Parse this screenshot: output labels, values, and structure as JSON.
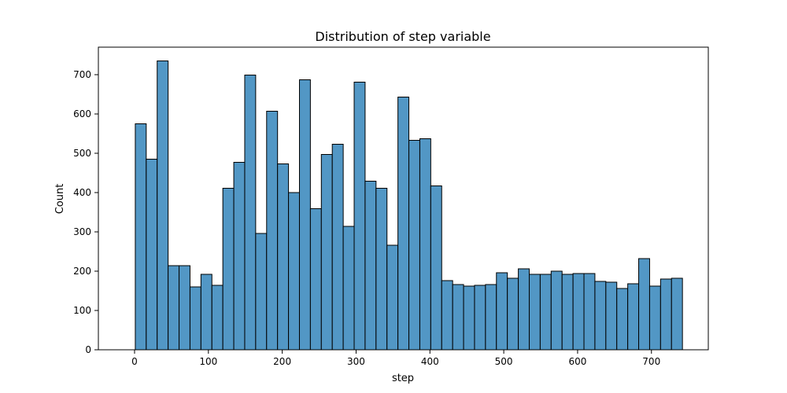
{
  "chart_data": {
    "type": "bar",
    "title": "Distribution of step variable",
    "xlabel": "step",
    "ylabel": "Count",
    "xlim": [
      -49,
      777
    ],
    "ylim": [
      0,
      770
    ],
    "xticks": [
      0,
      100,
      200,
      300,
      400,
      500,
      600,
      700
    ],
    "yticks": [
      0,
      100,
      200,
      300,
      400,
      500,
      600,
      700
    ],
    "grid": false,
    "bin_edges": [
      1,
      15.82,
      30.64,
      45.46,
      60.28,
      75.1,
      89.92,
      104.74,
      119.56,
      134.38,
      149.2,
      164.02,
      178.84,
      193.66,
      208.48,
      223.3,
      238.12,
      252.94,
      267.76,
      282.58,
      297.4,
      312.22,
      327.04,
      341.86,
      356.68,
      371.5,
      386.32,
      401.14,
      415.96,
      430.78,
      445.6,
      460.42,
      475.24,
      490.06,
      504.88,
      519.7,
      534.52,
      549.34,
      564.16,
      578.98,
      593.8,
      608.62,
      623.44,
      638.26,
      653.08,
      667.9,
      682.72,
      697.54,
      712.36,
      727.18,
      742
    ],
    "values": [
      575,
      485,
      735,
      214,
      214,
      160,
      192,
      164,
      411,
      477,
      699,
      296,
      607,
      473,
      400,
      687,
      359,
      497,
      523,
      314,
      681,
      429,
      411,
      266,
      643,
      533,
      537,
      417,
      176,
      166,
      162,
      164,
      166,
      196,
      182,
      206,
      192,
      192,
      200,
      192,
      194,
      194,
      174,
      172,
      156,
      168,
      232,
      162,
      180,
      182
    ],
    "bar_color": "#5297c5",
    "edge_color": "#000000"
  }
}
